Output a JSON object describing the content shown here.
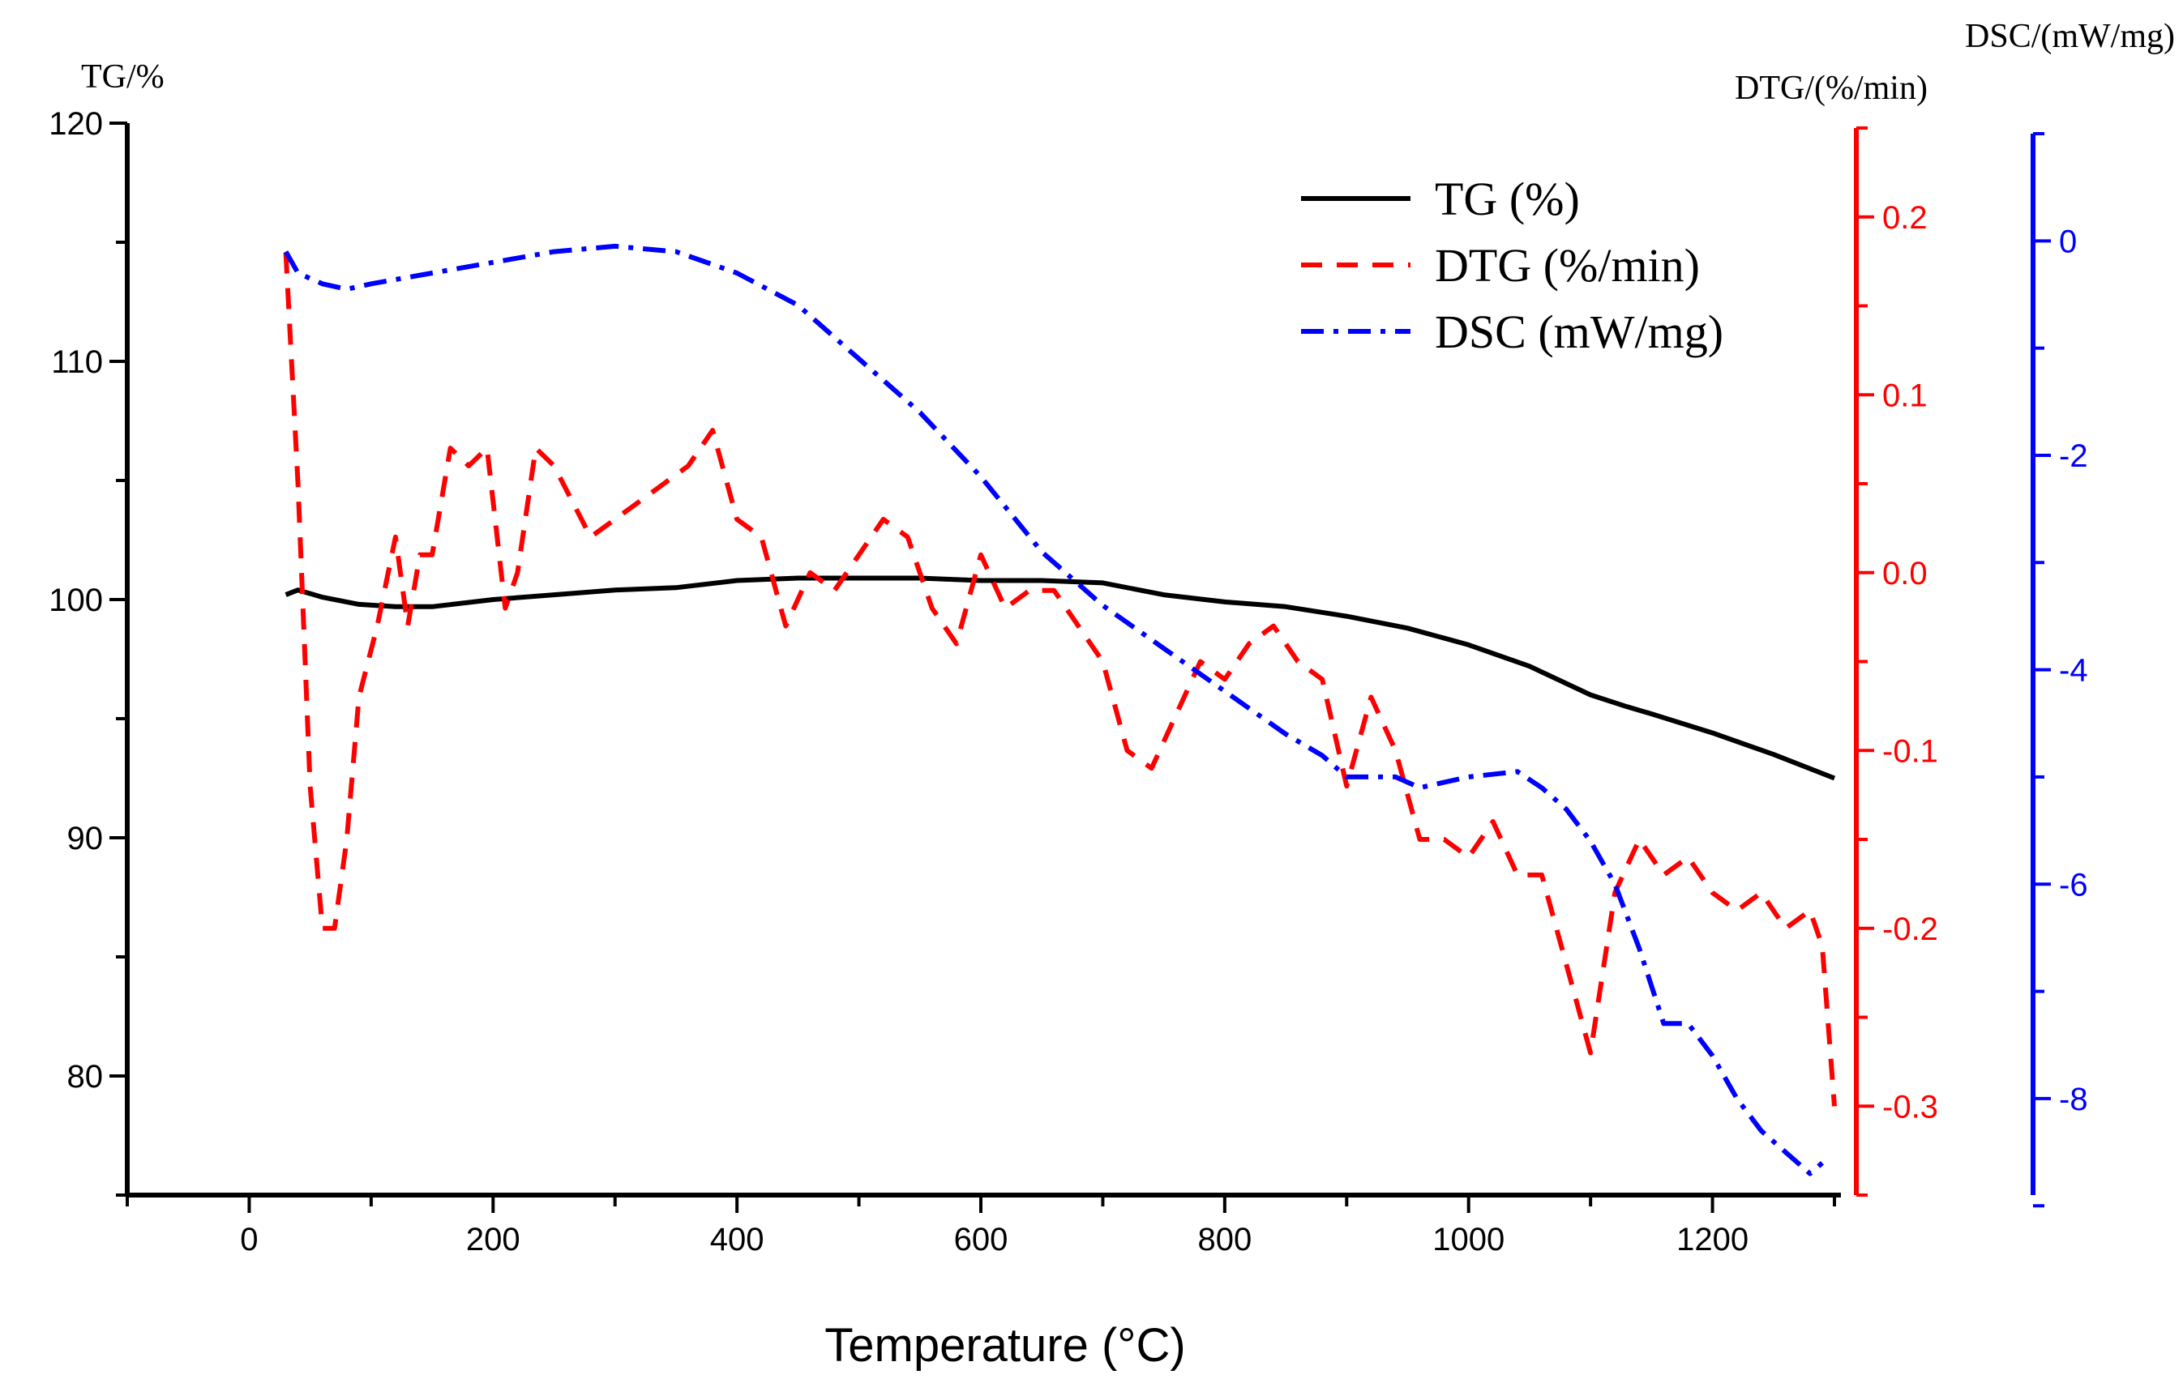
{
  "chart_data": {
    "type": "line",
    "xlabel": "Temperature (°C)",
    "xlim": [
      -100,
      1300
    ],
    "x_ticks": [
      0,
      200,
      400,
      600,
      800,
      1000,
      1200
    ],
    "axes": {
      "tg": {
        "label": "TG/%",
        "ylim": [
          75,
          120
        ],
        "ticks": [
          80,
          90,
          100,
          110,
          120
        ],
        "color": "#000000"
      },
      "dtg": {
        "label": "DTG/(%/min)",
        "ylim": [
          -0.35,
          0.25
        ],
        "ticks": [
          -0.3,
          -0.2,
          -0.1,
          0.0,
          0.1,
          0.2
        ],
        "tick_labels": [
          "-0.3",
          "-0.2",
          "-0.1",
          "0.0",
          "0.1",
          "0.2"
        ],
        "color": "#ff0000"
      },
      "dsc": {
        "label": "DSC/(mW/mg)",
        "ylim": [
          -8.9,
          1.0
        ],
        "ticks": [
          -8,
          -6,
          -4,
          -2,
          0
        ],
        "tick_labels": [
          "-8",
          "-6",
          "-4",
          "-2",
          "0"
        ],
        "color": "#0000ff"
      }
    },
    "legend_position": "top-right",
    "series": [
      {
        "name": "TG (%)",
        "axis": "tg",
        "color": "#000000",
        "dash": "solid",
        "x": [
          30,
          40,
          60,
          90,
          120,
          150,
          200,
          250,
          300,
          350,
          400,
          450,
          500,
          550,
          600,
          650,
          700,
          750,
          800,
          850,
          900,
          950,
          1000,
          1050,
          1100,
          1130,
          1150,
          1200,
          1250,
          1300
        ],
        "y": [
          100.2,
          100.4,
          100.1,
          99.8,
          99.7,
          99.7,
          100.0,
          100.2,
          100.4,
          100.5,
          100.8,
          100.9,
          100.9,
          100.9,
          100.8,
          100.8,
          100.7,
          100.2,
          99.9,
          99.7,
          99.3,
          98.8,
          98.1,
          97.2,
          96.0,
          95.5,
          95.2,
          94.4,
          93.5,
          92.5
        ]
      },
      {
        "name": "DTG (%/min)",
        "axis": "dtg",
        "color": "#ff0000",
        "dash": "dashed",
        "x": [
          30,
          40,
          50,
          60,
          70,
          80,
          90,
          105,
          120,
          130,
          140,
          150,
          165,
          180,
          195,
          210,
          220,
          235,
          250,
          265,
          280,
          300,
          320,
          340,
          360,
          380,
          400,
          420,
          440,
          460,
          480,
          500,
          520,
          540,
          560,
          580,
          600,
          620,
          640,
          660,
          680,
          700,
          720,
          740,
          760,
          780,
          800,
          820,
          840,
          860,
          880,
          900,
          920,
          940,
          960,
          980,
          1000,
          1020,
          1040,
          1060,
          1080,
          1100,
          1120,
          1140,
          1160,
          1180,
          1200,
          1220,
          1240,
          1260,
          1280,
          1290,
          1300
        ],
        "y": [
          0.18,
          0.05,
          -0.12,
          -0.2,
          -0.2,
          -0.15,
          -0.07,
          -0.03,
          0.02,
          -0.03,
          0.01,
          0.01,
          0.07,
          0.06,
          0.07,
          -0.02,
          0.0,
          0.07,
          0.06,
          0.04,
          0.02,
          0.03,
          0.04,
          0.05,
          0.06,
          0.08,
          0.03,
          0.02,
          -0.03,
          0.0,
          -0.01,
          0.01,
          0.03,
          0.02,
          -0.02,
          -0.04,
          0.01,
          -0.02,
          -0.01,
          -0.01,
          -0.03,
          -0.05,
          -0.1,
          -0.11,
          -0.08,
          -0.05,
          -0.06,
          -0.04,
          -0.03,
          -0.05,
          -0.06,
          -0.12,
          -0.07,
          -0.1,
          -0.15,
          -0.15,
          -0.16,
          -0.14,
          -0.17,
          -0.17,
          -0.22,
          -0.27,
          -0.18,
          -0.15,
          -0.17,
          -0.16,
          -0.18,
          -0.19,
          -0.18,
          -0.2,
          -0.19,
          -0.21,
          -0.3
        ]
      },
      {
        "name": "DSC (mW/mg)",
        "axis": "dsc",
        "color": "#0000ff",
        "dash": "dashdot",
        "x": [
          30,
          40,
          60,
          80,
          100,
          150,
          200,
          250,
          300,
          350,
          400,
          450,
          500,
          550,
          600,
          650,
          700,
          750,
          800,
          850,
          880,
          900,
          920,
          940,
          960,
          1000,
          1040,
          1060,
          1080,
          1100,
          1120,
          1140,
          1160,
          1180,
          1200,
          1220,
          1240,
          1260,
          1280,
          1290
        ],
        "y": [
          -0.1,
          -0.3,
          -0.4,
          -0.45,
          -0.4,
          -0.3,
          -0.2,
          -0.1,
          -0.05,
          -0.1,
          -0.3,
          -0.6,
          -1.1,
          -1.6,
          -2.2,
          -2.9,
          -3.4,
          -3.8,
          -4.2,
          -4.6,
          -4.8,
          -5.0,
          -5.0,
          -5.0,
          -5.1,
          -5.0,
          -4.95,
          -5.1,
          -5.3,
          -5.6,
          -6.0,
          -6.6,
          -7.3,
          -7.3,
          -7.6,
          -8.0,
          -8.3,
          -8.5,
          -8.7,
          -8.6
        ]
      }
    ]
  }
}
